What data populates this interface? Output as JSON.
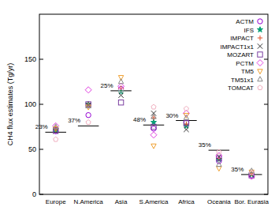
{
  "chart_data": {
    "type": "scatter",
    "y_label": "CH4 flux estimates (Tg/yr)",
    "categories": [
      "Europe",
      "N.America",
      "Asia",
      "S.America",
      "Africa",
      "Oceania",
      "Bor. Eurasia"
    ],
    "ylim": [
      0,
      200
    ],
    "yticks": [
      0,
      50,
      100,
      150
    ],
    "legend": "top-right",
    "reference_values": [
      69,
      76,
      115,
      77,
      82,
      49,
      22
    ],
    "annotations": [
      "23%",
      "37%",
      "25%",
      "48%",
      "30%",
      "35%",
      "35%"
    ],
    "series": [
      {
        "name": "ACTM",
        "color": "#9400d3",
        "marker": "circle",
        "values": [
          70,
          88,
          117,
          73,
          80,
          37,
          21
        ]
      },
      {
        "name": "IFS",
        "color": "#009e73",
        "marker": "star",
        "values": [
          72,
          100,
          114,
          80,
          76,
          39,
          22
        ]
      },
      {
        "name": "IMPACT",
        "color": "#e0502a",
        "marker": "plus",
        "values": [
          74,
          100,
          118,
          85,
          78,
          40,
          23
        ]
      },
      {
        "name": "IMPACT1x1",
        "color": "#333333",
        "marker": "cross",
        "values": [
          70,
          99,
          110,
          90,
          72,
          42,
          22
        ]
      },
      {
        "name": "MOZART",
        "color": "#7b3fa0",
        "marker": "square",
        "values": [
          71,
          100,
          102,
          75,
          79,
          40,
          21
        ]
      },
      {
        "name": "PCTM",
        "color": "#e040e0",
        "marker": "diamond",
        "values": [
          76,
          116,
          120,
          66,
          90,
          43,
          20
        ]
      },
      {
        "name": "TM5",
        "color": "#f0a030",
        "marker": "triangle-down",
        "values": [
          73,
          97,
          130,
          54,
          88,
          29,
          25
        ]
      },
      {
        "name": "TM51x1",
        "color": "#888888",
        "marker": "triangle-up",
        "values": [
          75,
          98,
          125,
          86,
          85,
          33,
          26
        ]
      },
      {
        "name": "TOMCAT",
        "color": "#f0b0c0",
        "marker": "pentagon",
        "values": [
          61,
          80,
          116,
          97,
          95,
          47,
          24
        ]
      }
    ]
  }
}
